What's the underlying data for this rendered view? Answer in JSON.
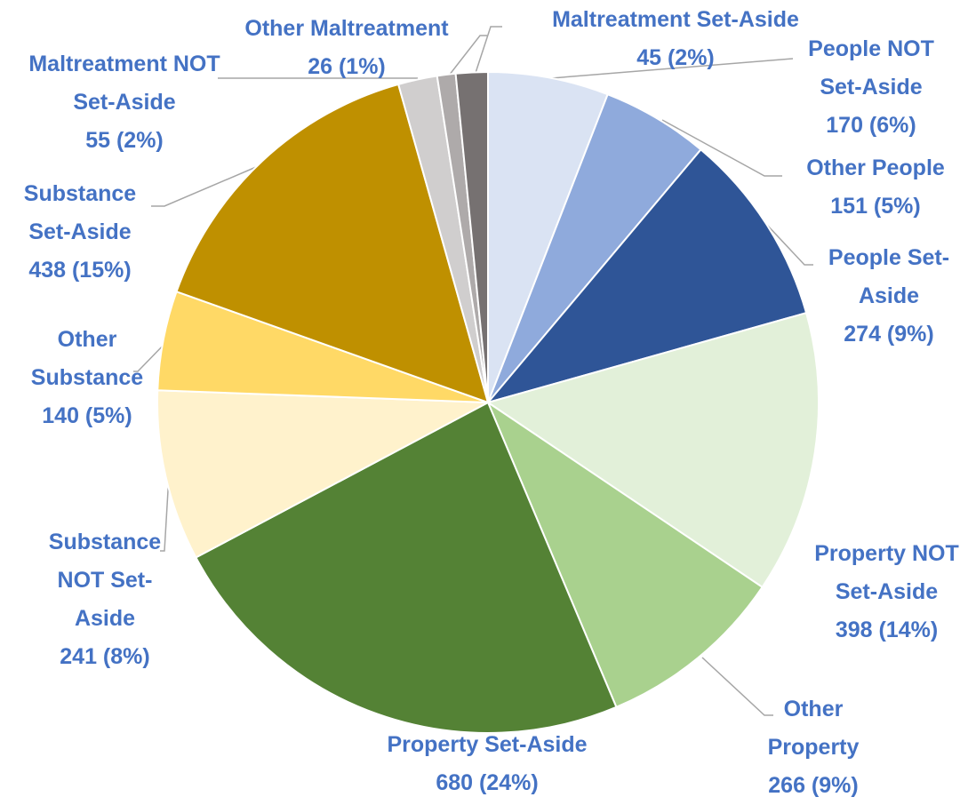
{
  "chart_data": {
    "type": "pie",
    "categories": [
      "People NOT Set-Aside",
      "Other People",
      "People Set-Aside",
      "Property NOT Set-Aside",
      "Other Property",
      "Property Set-Aside",
      "Substance NOT Set-Aside",
      "Other Substance",
      "Substance Set-Aside",
      "Maltreatment NOT Set-Aside",
      "Other Maltreatment",
      "Maltreatment Set-Aside"
    ],
    "values": [
      170,
      151,
      274,
      398,
      266,
      680,
      241,
      140,
      438,
      55,
      26,
      45
    ],
    "value_labels": [
      "170 (6%)",
      "151 (5%)",
      "274 (9%)",
      "398 (14%)",
      "266 (9%)",
      "680 (24%)",
      "241 (8%)",
      "140 (5%)",
      "438 (15%)",
      "55 (2%)",
      "26 (1%)",
      "45 (2%)"
    ],
    "colors": [
      "#dae3f3",
      "#8faadc",
      "#2f5597",
      "#e2f0d9",
      "#a9d18e",
      "#548235",
      "#fff2cc",
      "#ffd966",
      "#bf9000",
      "#d0cece",
      "#aeaaaa",
      "#767171"
    ]
  }
}
